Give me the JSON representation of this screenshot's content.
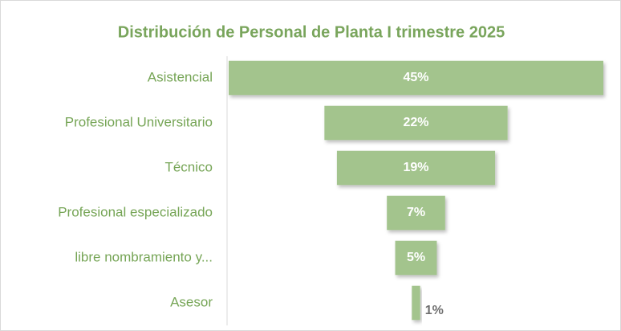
{
  "chart_data": {
    "type": "funnel",
    "title": "Distribución de Personal de Planta I trimestre 2025",
    "categories": [
      "Asistencial",
      "Profesional Universitario",
      "Técnico",
      "Profesional  especializado",
      "libre nombramiento y...",
      "Asesor"
    ],
    "values": [
      45,
      22,
      19,
      7,
      5,
      1
    ],
    "value_labels": [
      "45%",
      "22%",
      "19%",
      "7%",
      "5%",
      "1%"
    ],
    "color": "#a3c48d"
  }
}
